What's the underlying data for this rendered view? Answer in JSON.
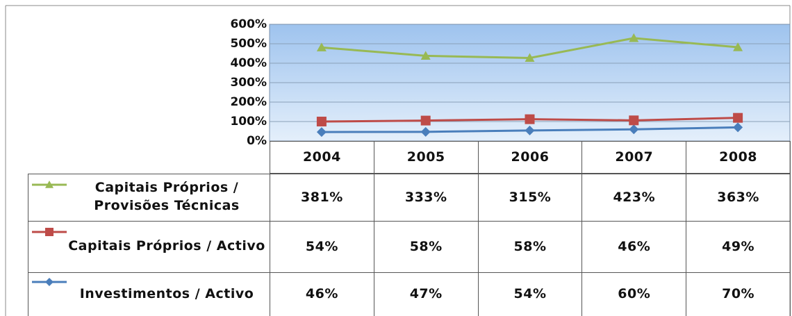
{
  "chart_data": {
    "type": "stacked-line",
    "categories": [
      "2004",
      "2005",
      "2006",
      "2007",
      "2008"
    ],
    "series": [
      {
        "name": "Investimentos / Activo",
        "color": "#4a7ebb",
        "marker": "diamond",
        "values": [
          46,
          47,
          54,
          60,
          70
        ],
        "value_labels": [
          "46%",
          "47%",
          "54%",
          "60%",
          "70%"
        ]
      },
      {
        "name": "Capitais Próprios / Activo",
        "color": "#be4b48",
        "marker": "square",
        "values": [
          54,
          58,
          58,
          46,
          49
        ],
        "value_labels": [
          "54%",
          "58%",
          "58%",
          "46%",
          "49%"
        ]
      },
      {
        "name": "Capitais Próprios / Provisões Técnicas",
        "color": "#98b954",
        "marker": "triangle",
        "values": [
          381,
          333,
          315,
          423,
          363
        ],
        "value_labels": [
          "381%",
          "333%",
          "315%",
          "423%",
          "363%"
        ]
      }
    ],
    "ylim": [
      0,
      600
    ],
    "yticks": [
      {
        "value": 0,
        "label": "0%"
      },
      {
        "value": 100,
        "label": "100%"
      },
      {
        "value": 200,
        "label": "200%"
      },
      {
        "value": 300,
        "label": "300%"
      },
      {
        "value": 400,
        "label": "400%"
      },
      {
        "value": 500,
        "label": "500%"
      },
      {
        "value": 600,
        "label": "600%"
      }
    ],
    "grid": true
  }
}
